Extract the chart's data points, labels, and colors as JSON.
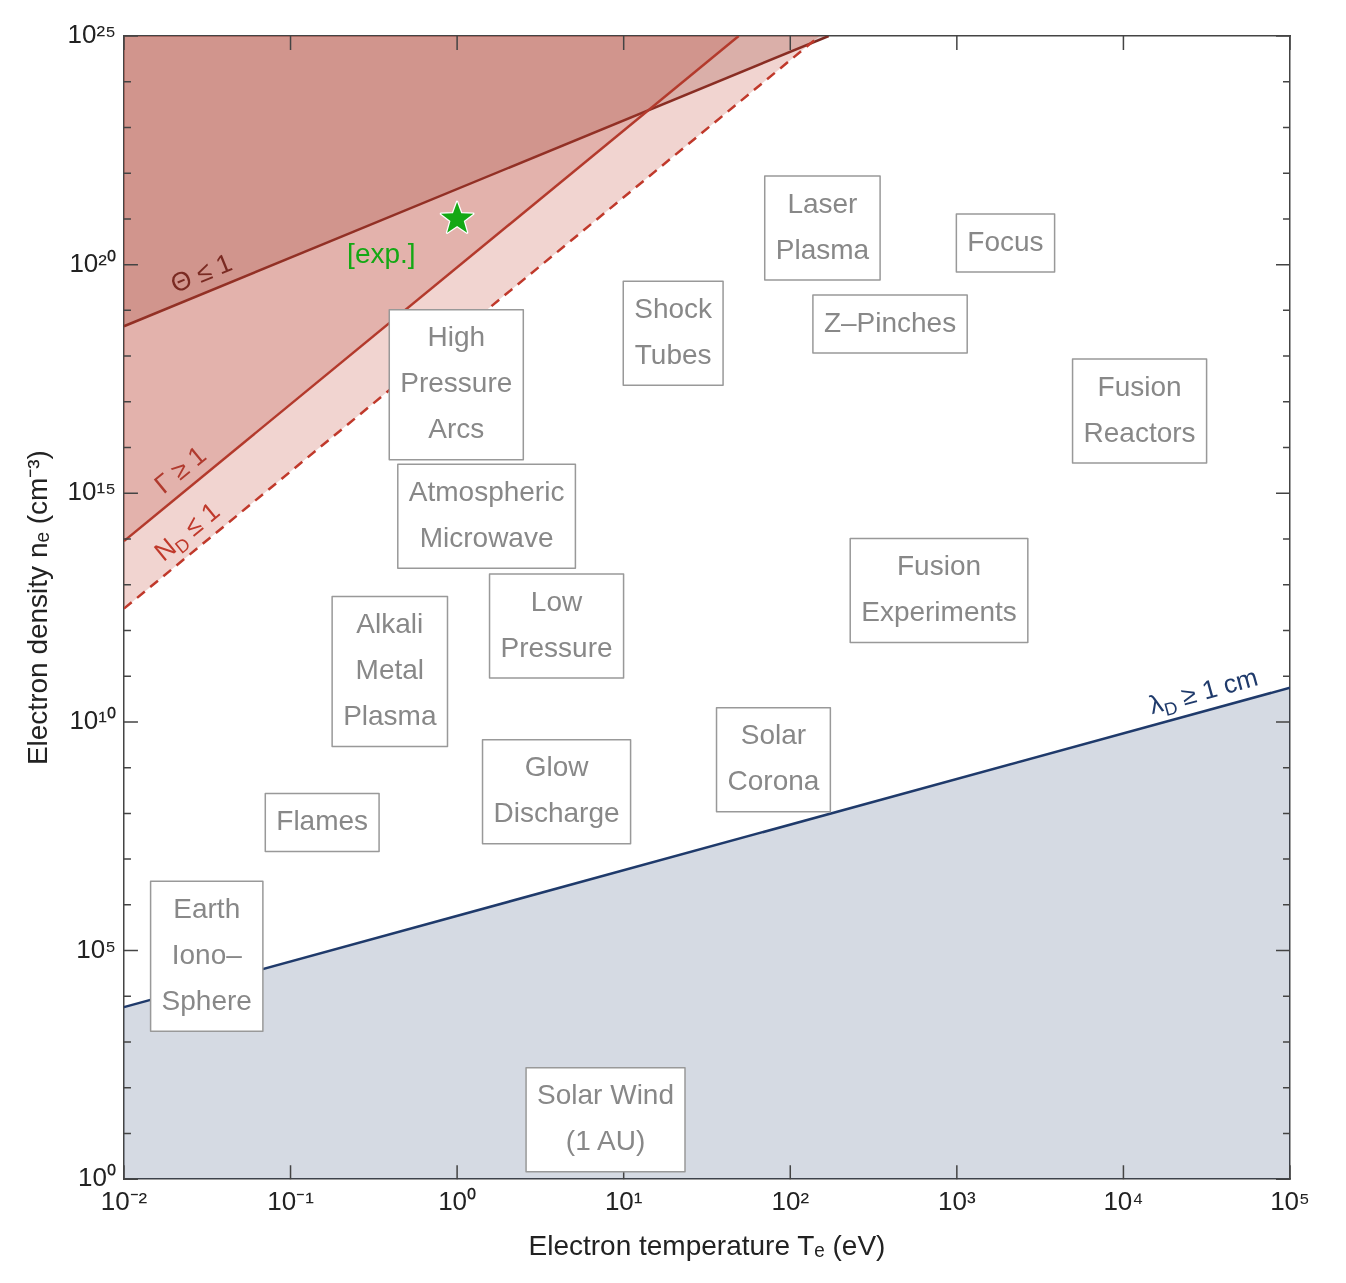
{
  "chart_data": {
    "type": "area",
    "xlabel": "Electron temperature Tₑ (eV)",
    "ylabel": "Electron density nₑ (cm⁻³)",
    "log": "xy",
    "grid": false,
    "legend": false,
    "xlim": [
      0.01,
      100000
    ],
    "ylim": [
      1,
      1e+25
    ],
    "xticks": [
      {
        "value": 0.01,
        "label": "10⁻²"
      },
      {
        "value": 0.1,
        "label": "10⁻¹"
      },
      {
        "value": 1,
        "label": "10⁰"
      },
      {
        "value": 10,
        "label": "10¹"
      },
      {
        "value": 100,
        "label": "10²"
      },
      {
        "value": 1000,
        "label": "10³"
      },
      {
        "value": 10000,
        "label": "10⁴"
      },
      {
        "value": 100000,
        "label": "10⁵"
      }
    ],
    "yticks": [
      {
        "value": 1,
        "label": "10⁰"
      },
      {
        "value": 10,
        "label": null
      },
      {
        "value": 100,
        "label": null
      },
      {
        "value": 1000,
        "label": null
      },
      {
        "value": 10000,
        "label": null
      },
      {
        "value": 100000,
        "label": "10⁵"
      },
      {
        "value": 1000000.0,
        "label": null
      },
      {
        "value": 10000000.0,
        "label": null
      },
      {
        "value": 100000000.0,
        "label": null
      },
      {
        "value": 1000000000.0,
        "label": null
      },
      {
        "value": 10000000000.0,
        "label": "10¹⁰"
      },
      {
        "value": 100000000000.0,
        "label": null
      },
      {
        "value": 1000000000000.0,
        "label": null
      },
      {
        "value": 10000000000000.0,
        "label": null
      },
      {
        "value": 100000000000000.0,
        "label": null
      },
      {
        "value": 1000000000000000.0,
        "label": "10¹⁵"
      },
      {
        "value": 1e+16,
        "label": null
      },
      {
        "value": 1e+17,
        "label": null
      },
      {
        "value": 1e+18,
        "label": null
      },
      {
        "value": 1e+19,
        "label": null
      },
      {
        "value": 1e+20,
        "label": "10²⁰"
      },
      {
        "value": 1e+21,
        "label": null
      },
      {
        "value": 1e+22,
        "label": null
      },
      {
        "value": 1e+23,
        "label": null
      },
      {
        "value": 1e+24,
        "label": null
      },
      {
        "value": 1e+25,
        "label": "10²⁵"
      }
    ],
    "series": [
      {
        "name": "N$_{D}$ ≤ 1",
        "color": "#c0392b",
        "line_style": "dashed",
        "x": [
          0.01,
          150
        ],
        "values": [
          3000000000000.0,
          1e+25
        ]
      },
      {
        "name": "Γ ≥ 1",
        "color": "#b03a2e",
        "line_style": "solid",
        "x": [
          0.01,
          49
        ],
        "values": [
          90000000000000.0,
          1e+25
        ]
      },
      {
        "name": "Θ ≤ 1",
        "color": "#7a2a22",
        "line_style": "solid",
        "x": [
          0.01,
          170
        ],
        "values": [
          4.5e+18,
          1e+25
        ]
      },
      {
        "name": "λ$_{D}$ ≥ 1 cm",
        "color": "#1f3a6b",
        "line_style": "solid",
        "x": [
          0.01,
          100000
        ],
        "values": [
          5800.0,
          56000000000.0
        ]
      },
      {
        "name": "[exp.]",
        "type": "scatter",
        "marker": "star",
        "color": "#14a814",
        "x": [
          1
        ],
        "values": [
          1e+21
        ]
      }
    ],
    "annotations": [
      "Laser\nPlasma",
      "Focus",
      "Shock\nTubes",
      "Z–Pinches",
      "High\nPressure\nArcs",
      "Fusion\nReactors",
      "Atmospheric\nMicrowave",
      "Fusion\nExperiments",
      "Alkali\nMetal\nPlasma",
      "Low\nPressure",
      "Solar\nCorona",
      "Glow\nDischarge",
      "Flames",
      "Earth\nIono–\nSphere",
      "Solar Wind\n(1 AU)"
    ]
  }
}
